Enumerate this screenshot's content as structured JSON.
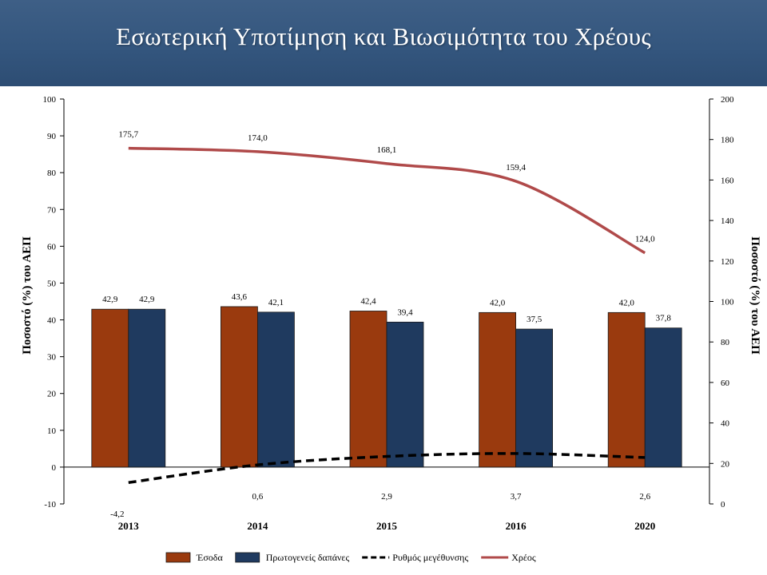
{
  "slide": {
    "title": "Εσωτερική Υποτίμηση και Βιωσιμότητα του Χρέους"
  },
  "chart_data": {
    "type": "bar+line",
    "categories": [
      "2013",
      "2014",
      "2015",
      "2016",
      "2020"
    ],
    "ylabel_left": "Ποσοστό (%) του ΑΕΠ",
    "ylabel_right": "Ποσοστό (%) του ΑΕΠ",
    "ylim_left": [
      -10,
      100
    ],
    "yticks_left": [
      -10,
      0,
      10,
      20,
      30,
      40,
      50,
      60,
      70,
      80,
      90,
      100
    ],
    "ylim_right": [
      0,
      200
    ],
    "yticks_right": [
      0,
      20,
      40,
      60,
      80,
      100,
      120,
      140,
      160,
      180,
      200
    ],
    "grid": false,
    "legend_position": "bottom",
    "series": [
      {
        "name": "Έσοδα",
        "kind": "bar",
        "axis": "left",
        "color": "#9a3a0e",
        "values": [
          42.9,
          43.6,
          42.4,
          42.0,
          42.0
        ],
        "labels": [
          "42,9",
          "43,6",
          "42,4",
          "42,0",
          "42,0"
        ]
      },
      {
        "name": "Πρωτογενείς δαπάνες",
        "kind": "bar",
        "axis": "left",
        "color": "#1f3a5f",
        "values": [
          42.9,
          42.1,
          39.4,
          37.5,
          37.8
        ],
        "labels": [
          "42,9",
          "42,1",
          "39,4",
          "37,5",
          "37,8"
        ]
      },
      {
        "name": "Ρυθμός μεγέθυνσης",
        "kind": "line-dashed",
        "axis": "left",
        "color": "#000000",
        "values": [
          -4.2,
          0.6,
          2.9,
          3.7,
          2.6
        ],
        "labels": [
          "-4,2",
          "0,6",
          "2,9",
          "3,7",
          "2,6"
        ]
      },
      {
        "name": "Χρέος",
        "kind": "line",
        "axis": "right",
        "color": "#b04a4a",
        "values": [
          175.7,
          174.0,
          168.1,
          159.4,
          124.0
        ],
        "labels": [
          "175,7",
          "174,0",
          "168,1",
          "159,4",
          "124,0"
        ]
      }
    ]
  }
}
